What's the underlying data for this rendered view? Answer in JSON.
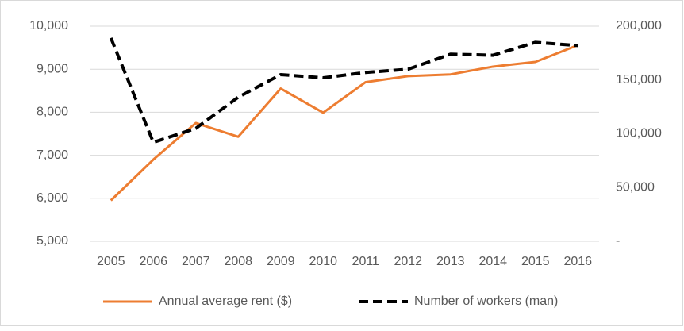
{
  "chart_data": {
    "type": "line",
    "categories": [
      "2005",
      "2006",
      "2007",
      "2008",
      "2009",
      "2010",
      "2011",
      "2012",
      "2013",
      "2014",
      "2015",
      "2016"
    ],
    "series": [
      {
        "name": "Annual average rent ($)",
        "color": "#ed7d31",
        "dash": false,
        "axis": "y",
        "values": [
          5950,
          6900,
          7750,
          7430,
          8550,
          7990,
          8700,
          8840,
          8880,
          9060,
          9170,
          9560
        ]
      },
      {
        "name": "Number of workers (man)",
        "color": "#000000",
        "dash": true,
        "axis": "y2",
        "values": [
          189000,
          92000,
          105000,
          134000,
          155000,
          152000,
          157000,
          160000,
          174000,
          173000,
          185000,
          182000
        ]
      }
    ],
    "ylim": [
      5000,
      10000
    ],
    "yticks": [
      {
        "value": 5000,
        "label": "5,000"
      },
      {
        "value": 6000,
        "label": "6,000"
      },
      {
        "value": 7000,
        "label": "7,000"
      },
      {
        "value": 8000,
        "label": "8,000"
      },
      {
        "value": 9000,
        "label": "9,000"
      },
      {
        "value": 10000,
        "label": "10,000"
      }
    ],
    "y2lim": [
      0,
      200000
    ],
    "y2ticks": [
      {
        "value": 0,
        "label": "-"
      },
      {
        "value": 50000,
        "label": "50,000"
      },
      {
        "value": 100000,
        "label": "100,000"
      },
      {
        "value": 150000,
        "label": "150,000"
      },
      {
        "value": 200000,
        "label": "200,000"
      }
    ],
    "grid": true,
    "legend": "bottom"
  }
}
